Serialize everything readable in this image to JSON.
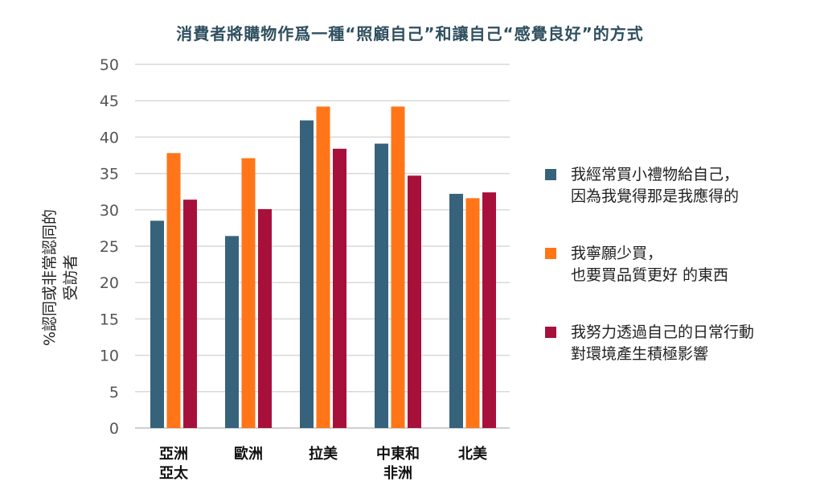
{
  "chart_data": {
    "type": "bar",
    "title": "消費者將購物作爲一種“照顧自己”和讓自己“感覺良好”的方式",
    "ylabel": [
      "%認同或非常認同的",
      "受訪者"
    ],
    "xlabel": "",
    "ylim": [
      0,
      50
    ],
    "yticks": [
      0,
      5,
      10,
      15,
      20,
      25,
      30,
      35,
      40,
      45,
      50
    ],
    "grid": true,
    "legend_position": "right",
    "categories": [
      [
        "亞洲",
        "亞太"
      ],
      [
        "歐洲"
      ],
      [
        "拉美"
      ],
      [
        "中東和",
        "非洲"
      ],
      [
        "北美"
      ]
    ],
    "series": [
      {
        "name": [
          "我經常買小禮物給自己，",
          "因為我覺得那是我應得的"
        ],
        "color": "#37627c",
        "values": [
          28.5,
          26.4,
          42.3,
          39.1,
          32.2
        ]
      },
      {
        "name": [
          "我寧願少買，",
          "也要買品質更好 的東西"
        ],
        "color": "#ff7518",
        "values": [
          37.8,
          37.1,
          44.2,
          44.2,
          31.6
        ]
      },
      {
        "name": [
          "我努力透過自己的日常行動",
          "對環境產生積極影響"
        ],
        "color": "#a8103c",
        "values": [
          31.4,
          30.1,
          38.4,
          34.7,
          32.4
        ]
      }
    ]
  }
}
